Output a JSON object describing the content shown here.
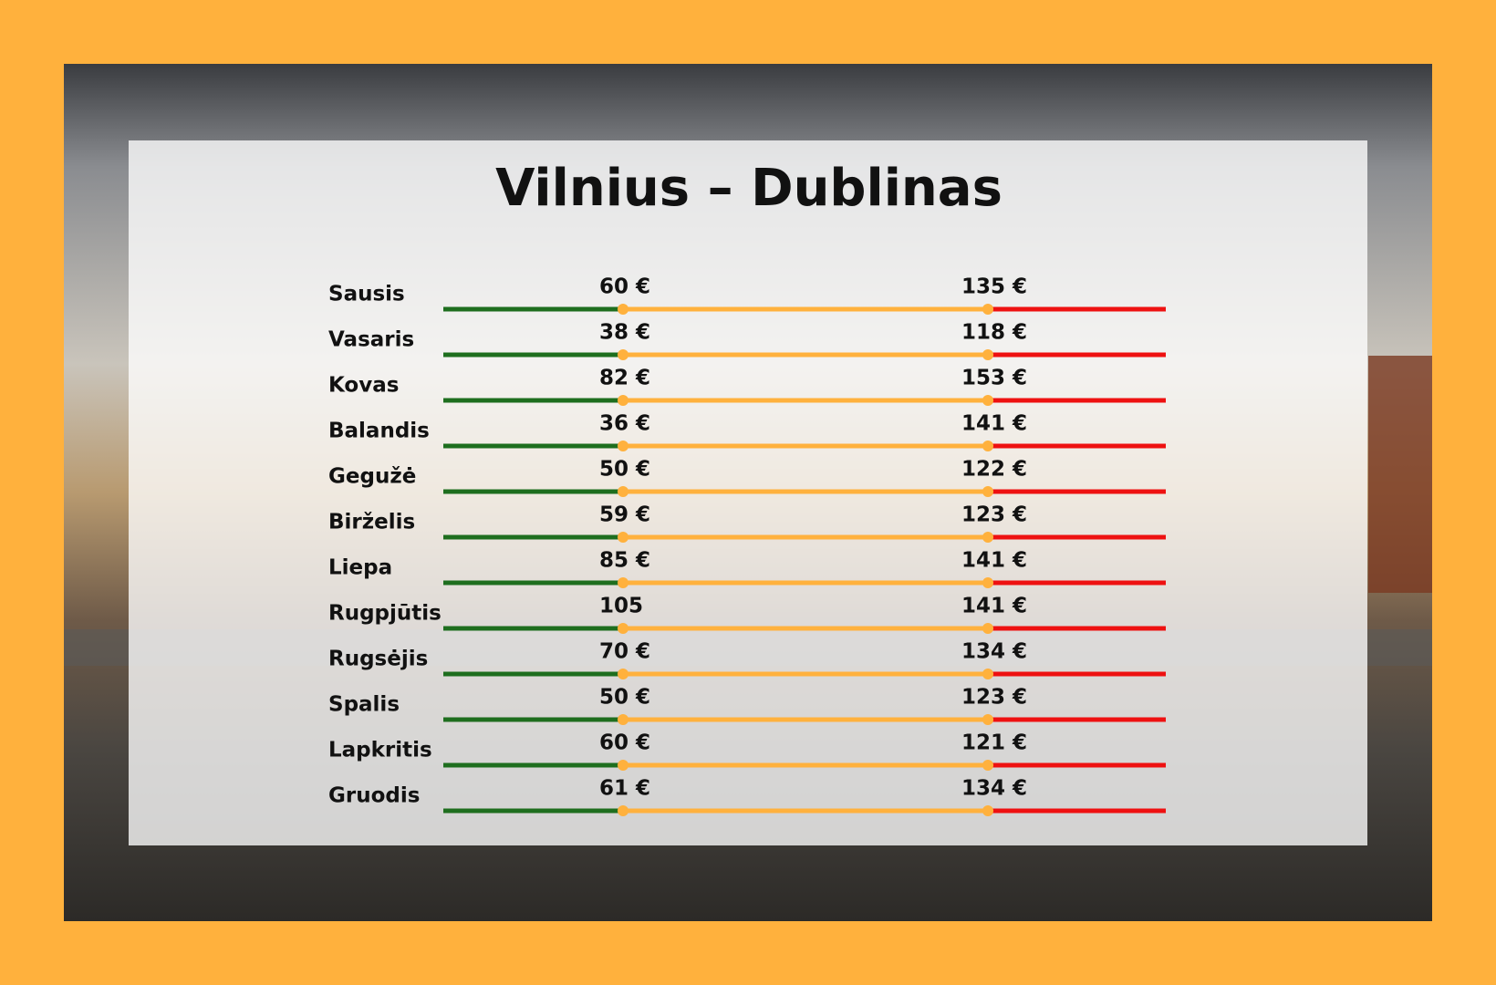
{
  "title": "Vilnius – Dublinas",
  "rows": [
    {
      "month": "Sausis",
      "low": "60 €",
      "high": "135 €"
    },
    {
      "month": "Vasaris",
      "low": "38 €",
      "high": "118 €"
    },
    {
      "month": "Kovas",
      "low": "82 €",
      "high": "153 €"
    },
    {
      "month": "Balandis",
      "low": "36 €",
      "high": "141 €"
    },
    {
      "month": "Gegužė",
      "low": "50 €",
      "high": "122 €"
    },
    {
      "month": "Birželis",
      "low": "59 €",
      "high": "123 €"
    },
    {
      "month": "Liepa",
      "low": "85 €",
      "high": "141 €"
    },
    {
      "month": "Rugpjūtis",
      "low": "105",
      "high": "141 €"
    },
    {
      "month": "Rugsėjis",
      "low": "70 €",
      "high": "134 €"
    },
    {
      "month": "Spalis",
      "low": "50 €",
      "high": "123 €"
    },
    {
      "month": "Lapkritis",
      "low": "60 €",
      "high": "121 €"
    },
    {
      "month": "Gruodis",
      "low": "61 €",
      "high": "134 €"
    }
  ]
}
